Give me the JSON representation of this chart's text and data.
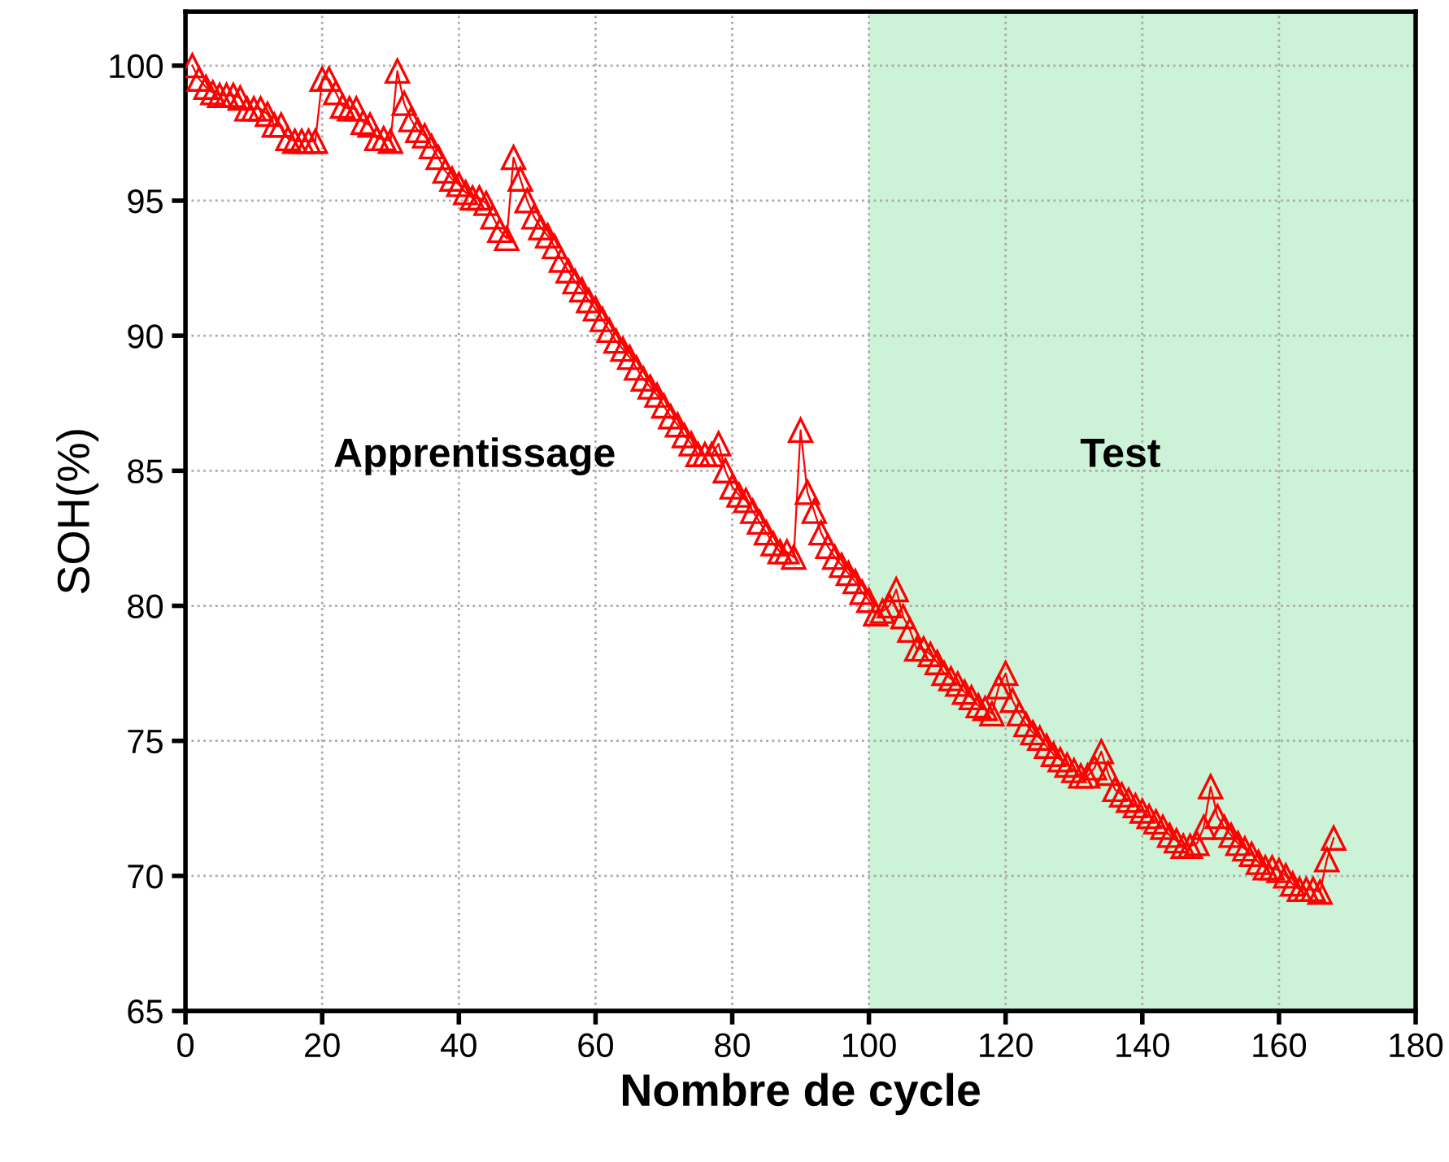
{
  "chart_data": {
    "type": "line",
    "xlabel": "Nombre de cycle",
    "ylabel": "SOH(%)",
    "xlim": [
      0,
      180
    ],
    "xticks": [
      0,
      20,
      40,
      60,
      80,
      100,
      120,
      140,
      160,
      180
    ],
    "ylim": [
      65,
      102
    ],
    "yticks": [
      65,
      70,
      75,
      80,
      85,
      90,
      95,
      100
    ],
    "grid": true,
    "marker": "triangle",
    "line_style": "solid",
    "bands": [
      {
        "axis": "x",
        "from": 100,
        "to": 180,
        "color": "#ccf2d8"
      }
    ],
    "annotations": [
      "Apprentissage",
      "Test"
    ],
    "series": [
      {
        "color": "#ff0000",
        "x": [
          1,
          2,
          3,
          4,
          5,
          6,
          7,
          8,
          9,
          10,
          11,
          12,
          13,
          14,
          15,
          16,
          17,
          18,
          19,
          20,
          21,
          22,
          23,
          24,
          25,
          26,
          27,
          28,
          29,
          30,
          31,
          32,
          33,
          34,
          35,
          36,
          37,
          38,
          39,
          40,
          41,
          42,
          43,
          44,
          45,
          46,
          47,
          48,
          49,
          50,
          51,
          52,
          53,
          54,
          55,
          56,
          57,
          58,
          59,
          60,
          61,
          62,
          63,
          64,
          65,
          66,
          67,
          68,
          69,
          70,
          71,
          72,
          73,
          74,
          75,
          76,
          77,
          78,
          79,
          80,
          81,
          82,
          83,
          84,
          85,
          86,
          87,
          88,
          89,
          90,
          91,
          92,
          93,
          94,
          95,
          96,
          97,
          98,
          99,
          100,
          101,
          102,
          103,
          104,
          105,
          106,
          107,
          108,
          109,
          110,
          111,
          112,
          113,
          114,
          115,
          116,
          117,
          118,
          119,
          120,
          121,
          122,
          123,
          124,
          125,
          126,
          127,
          128,
          129,
          130,
          131,
          132,
          133,
          134,
          135,
          136,
          137,
          138,
          139,
          140,
          141,
          142,
          143,
          144,
          145,
          146,
          147,
          148,
          149,
          150,
          151,
          152,
          153,
          154,
          155,
          156,
          157,
          158,
          159,
          160,
          161,
          162,
          163,
          164,
          165,
          166,
          167,
          168
        ],
        "values": [
          100.0,
          99.5,
          99.2,
          99.0,
          98.9,
          98.9,
          98.9,
          98.8,
          98.4,
          98.4,
          98.4,
          98.2,
          97.8,
          97.8,
          97.3,
          97.2,
          97.2,
          97.2,
          97.2,
          99.5,
          99.5,
          99.0,
          98.5,
          98.4,
          98.4,
          97.9,
          97.8,
          97.3,
          97.3,
          97.2,
          99.8,
          98.6,
          98.0,
          97.6,
          97.4,
          97.0,
          96.6,
          96.1,
          95.8,
          95.6,
          95.3,
          95.1,
          95.1,
          94.9,
          94.4,
          93.9,
          93.6,
          96.6,
          95.8,
          95.0,
          94.4,
          94.0,
          93.7,
          93.3,
          92.8,
          92.4,
          92.0,
          91.7,
          91.3,
          91.0,
          90.6,
          90.2,
          89.8,
          89.5,
          89.2,
          88.8,
          88.4,
          88.1,
          87.8,
          87.4,
          87.0,
          86.7,
          86.3,
          86.0,
          85.6,
          85.6,
          85.6,
          86.0,
          85.0,
          84.4,
          84.1,
          83.9,
          83.5,
          83.1,
          82.7,
          82.3,
          82.0,
          82.0,
          81.8,
          86.5,
          84.2,
          83.5,
          82.7,
          82.2,
          81.8,
          81.5,
          81.2,
          80.9,
          80.5,
          80.2,
          79.7,
          79.8,
          80.0,
          80.6,
          79.6,
          79.1,
          78.4,
          78.4,
          78.2,
          77.9,
          77.5,
          77.3,
          77.1,
          76.8,
          76.6,
          76.3,
          76.2,
          76.0,
          77.0,
          77.5,
          76.5,
          76.0,
          75.6,
          75.3,
          75.1,
          74.8,
          74.5,
          74.3,
          74.1,
          73.9,
          73.7,
          73.7,
          74.0,
          74.6,
          73.8,
          73.2,
          73.0,
          72.8,
          72.6,
          72.4,
          72.2,
          72.0,
          71.8,
          71.5,
          71.3,
          71.1,
          71.1,
          71.2,
          71.8,
          73.3,
          72.2,
          71.8,
          71.5,
          71.2,
          71.0,
          70.8,
          70.5,
          70.3,
          70.3,
          70.2,
          70.0,
          69.7,
          69.5,
          69.5,
          69.5,
          69.4,
          70.6,
          71.4
        ]
      }
    ]
  }
}
